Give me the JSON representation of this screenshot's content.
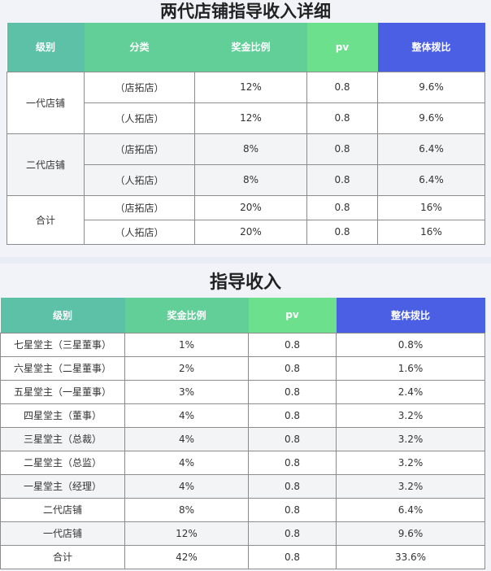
{
  "table1": {
    "title": "两代店铺指导收入详细",
    "headers": [
      "级别",
      "分类",
      "奖金比例",
      "pv",
      "整体拨比"
    ],
    "groups": [
      {
        "level": "一代店铺",
        "rows": [
          {
            "category": "（店拓店）",
            "ratio": "12%",
            "pv": "0.8",
            "overall": "9.6%"
          },
          {
            "category": "（人拓店）",
            "ratio": "12%",
            "pv": "0.8",
            "overall": "9.6%"
          }
        ]
      },
      {
        "level": "二代店铺",
        "rows": [
          {
            "category": "（店拓店）",
            "ratio": "8%",
            "pv": "0.8",
            "overall": "6.4%"
          },
          {
            "category": "（人拓店）",
            "ratio": "8%",
            "pv": "0.8",
            "overall": "6.4%"
          }
        ]
      },
      {
        "level": "合计",
        "rows": [
          {
            "category": "（店拓店）",
            "ratio": "20%",
            "pv": "0.8",
            "overall": "16%"
          },
          {
            "category": "（人拓店）",
            "ratio": "20%",
            "pv": "0.8",
            "overall": "16%"
          }
        ]
      }
    ]
  },
  "table2": {
    "title": "指导收入",
    "headers": [
      "级别",
      "奖金比例",
      "pv",
      "整体拨比"
    ],
    "rows": [
      {
        "level": "七星堂主（三星董事）",
        "ratio": "1%",
        "pv": "0.8",
        "overall": "0.8%"
      },
      {
        "level": "六星堂主（二星董事）",
        "ratio": "2%",
        "pv": "0.8",
        "overall": "1.6%"
      },
      {
        "level": "五星堂主（一星董事）",
        "ratio": "3%",
        "pv": "0.8",
        "overall": "2.4%"
      },
      {
        "level": "四星堂主（董事）",
        "ratio": "4%",
        "pv": "0.8",
        "overall": "3.2%"
      },
      {
        "level": "三星堂主（总裁）",
        "ratio": "4%",
        "pv": "0.8",
        "overall": "3.2%"
      },
      {
        "level": "二星堂主（总监）",
        "ratio": "4%",
        "pv": "0.8",
        "overall": "3.2%"
      },
      {
        "level": "一星堂主（经理）",
        "ratio": "4%",
        "pv": "0.8",
        "overall": "3.2%"
      },
      {
        "level": "二代店铺",
        "ratio": "8%",
        "pv": "0.8",
        "overall": "6.4%"
      },
      {
        "level": "一代店铺",
        "ratio": "12%",
        "pv": "0.8",
        "overall": "9.6%"
      },
      {
        "level": "合计",
        "ratio": "42%",
        "pv": "0.8",
        "overall": "33.6%"
      }
    ]
  },
  "colors": {
    "header_col1": "#5cc1a6",
    "header_col2": "#62cf98",
    "header_pv": "#6ce08d",
    "header_overall": "#4a5fe3"
  }
}
